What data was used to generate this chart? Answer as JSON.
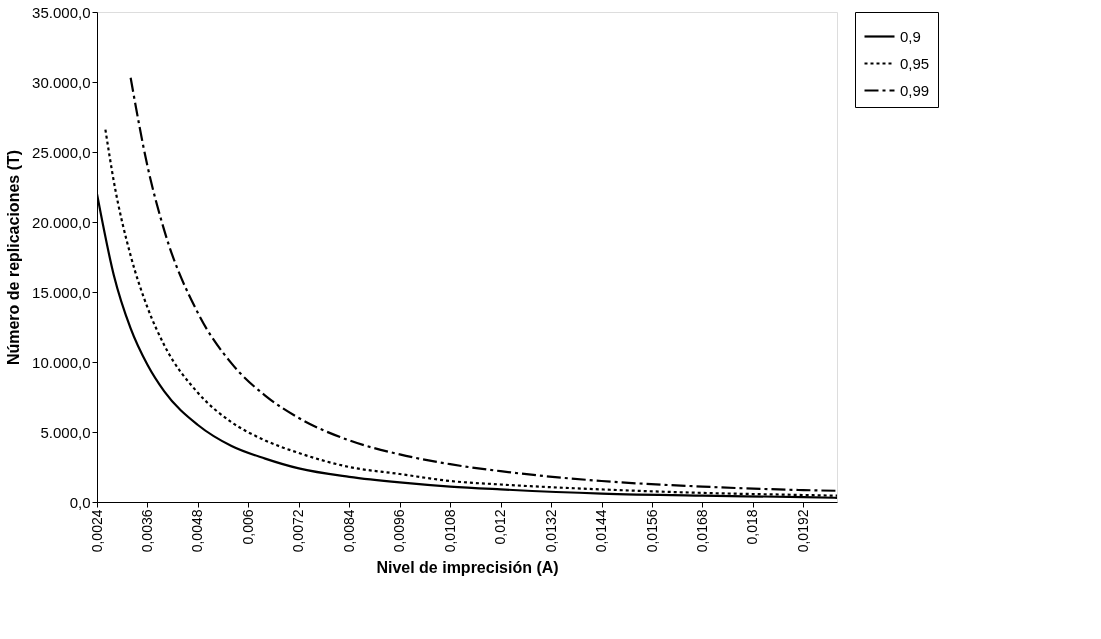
{
  "chart_data": {
    "type": "line",
    "xlabel": "Nivel de imprecisión (A)",
    "ylabel": "Número de replicaciones (T)",
    "xlim": [
      0.0024,
      0.02
    ],
    "ylim": [
      0,
      35000
    ],
    "xticks": [
      {
        "value": 0.0024,
        "label": "0,0024"
      },
      {
        "value": 0.0036,
        "label": "0,0036"
      },
      {
        "value": 0.0048,
        "label": "0,0048"
      },
      {
        "value": 0.006,
        "label": "0,006"
      },
      {
        "value": 0.0072,
        "label": "0,0072"
      },
      {
        "value": 0.0084,
        "label": "0,0084"
      },
      {
        "value": 0.0096,
        "label": "0,0096"
      },
      {
        "value": 0.0108,
        "label": "0,0108"
      },
      {
        "value": 0.012,
        "label": "0,012"
      },
      {
        "value": 0.0132,
        "label": "0,0132"
      },
      {
        "value": 0.0144,
        "label": "0,0144"
      },
      {
        "value": 0.0156,
        "label": "0,0156"
      },
      {
        "value": 0.0168,
        "label": "0,0168"
      },
      {
        "value": 0.018,
        "label": "0,018"
      },
      {
        "value": 0.0192,
        "label": "0,0192"
      }
    ],
    "yticks": [
      {
        "value": 0,
        "label": "0,0"
      },
      {
        "value": 5000,
        "label": "5.000,0"
      },
      {
        "value": 10000,
        "label": "10.000,0"
      },
      {
        "value": 15000,
        "label": "15.000,0"
      },
      {
        "value": 20000,
        "label": "20.000,0"
      },
      {
        "value": 25000,
        "label": "25.000,0"
      },
      {
        "value": 30000,
        "label": "30.000,0"
      },
      {
        "value": 35000,
        "label": "35.000,0"
      }
    ],
    "grid": false,
    "legend": "right",
    "marker": "none",
    "series": [
      {
        "name": "0,9",
        "color": "#000000",
        "line_style": "solid",
        "x": [
          0.0024,
          0.0028,
          0.0032,
          0.0036,
          0.004,
          0.0048,
          0.0056,
          0.0064,
          0.0072,
          0.0084,
          0.0096,
          0.0108,
          0.012,
          0.0144,
          0.0168,
          0.0192,
          0.02
        ],
        "values": [
          22000,
          16200,
          12400,
          9800,
          7900,
          5500,
          4000,
          3100,
          2400,
          1800,
          1400,
          1100,
          900,
          600,
          450,
          350,
          300
        ]
      },
      {
        "name": "0,95",
        "color": "#000000",
        "line_style": "dotted",
        "x": [
          0.0026,
          0.0028,
          0.0032,
          0.0036,
          0.004,
          0.0048,
          0.0056,
          0.0064,
          0.0072,
          0.0084,
          0.0096,
          0.0108,
          0.012,
          0.0144,
          0.0168,
          0.0192,
          0.02
        ],
        "values": [
          26600,
          22900,
          17600,
          13900,
          11200,
          7800,
          5700,
          4400,
          3500,
          2500,
          2000,
          1500,
          1250,
          900,
          650,
          500,
          450
        ]
      },
      {
        "name": "0,99",
        "color": "#000000",
        "line_style": "dashed",
        "x": [
          0.0032,
          0.0036,
          0.004,
          0.0048,
          0.0056,
          0.0064,
          0.0072,
          0.0084,
          0.0096,
          0.0108,
          0.012,
          0.0144,
          0.0168,
          0.0192,
          0.02
        ],
        "values": [
          30300,
          24000,
          19400,
          13500,
          9900,
          7600,
          6000,
          4400,
          3400,
          2700,
          2200,
          1500,
          1100,
          850,
          800
        ]
      }
    ]
  }
}
